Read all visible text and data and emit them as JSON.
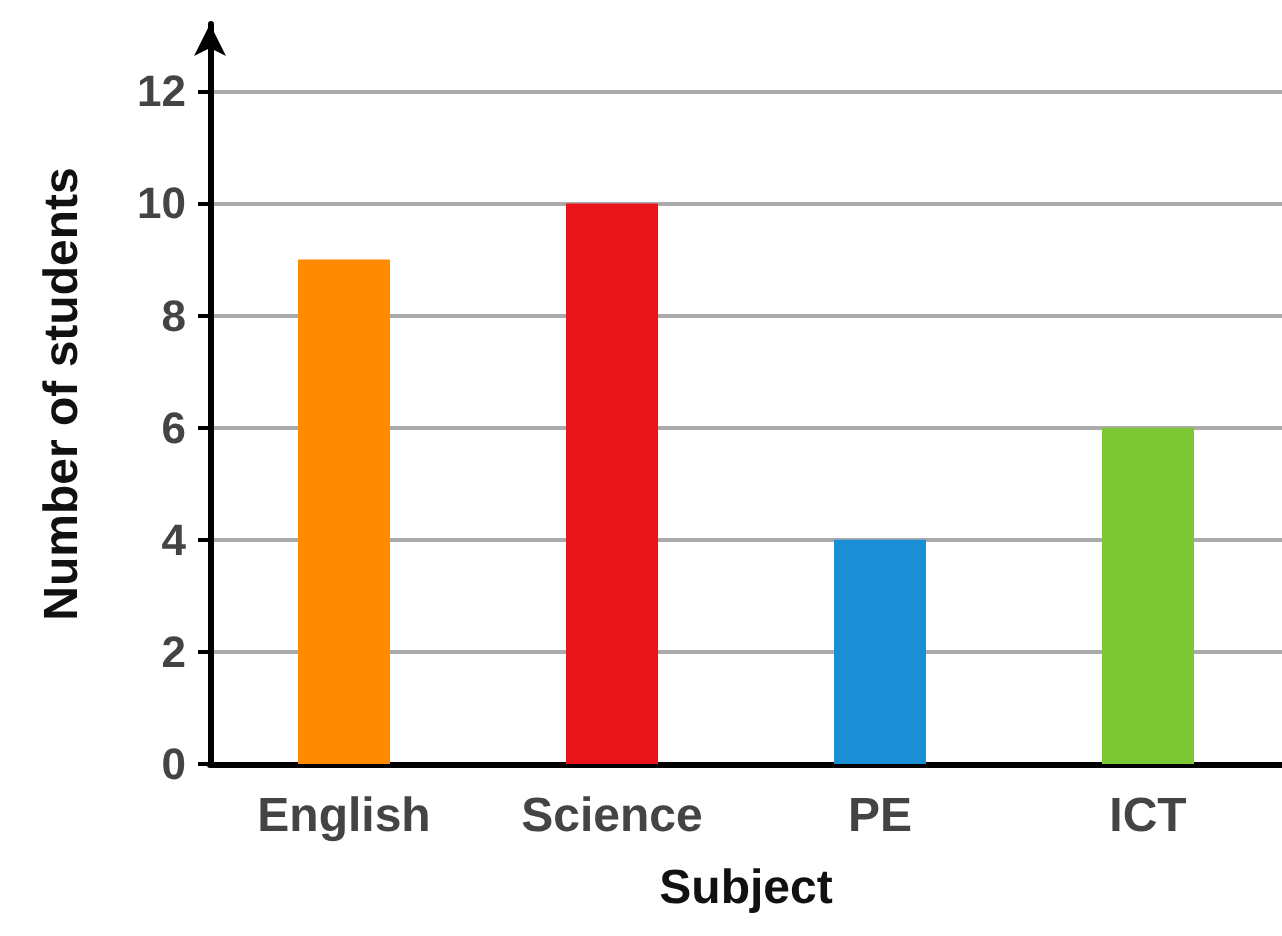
{
  "chart_data": {
    "type": "bar",
    "xlabel": "Subject",
    "ylabel": "Number of students",
    "categories": [
      "English",
      "Science",
      "PE",
      "ICT"
    ],
    "values": [
      9,
      10,
      4,
      6
    ],
    "colors": [
      "#ff8a00",
      "#e8141a",
      "#1a8fd6",
      "#7cc734"
    ],
    "ylim": [
      0,
      13.2
    ],
    "yticks": [
      0,
      2,
      4,
      6,
      8,
      10,
      12
    ],
    "grid": "y"
  }
}
